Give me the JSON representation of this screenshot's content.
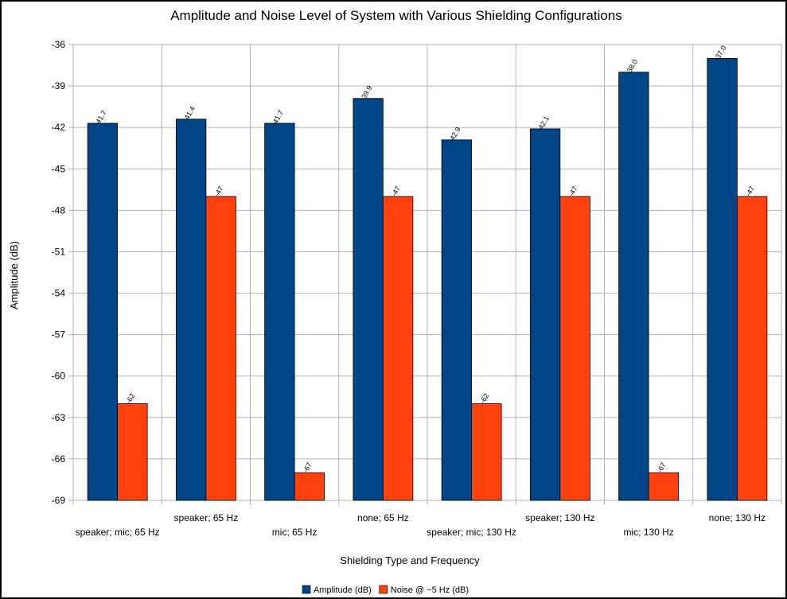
{
  "chart_data": {
    "type": "bar",
    "title": "Amplitude and Noise Level of System with Various Shielding Configurations",
    "xlabel": "Shielding Type and Frequency",
    "ylabel": "Amplitude (dB)",
    "categories": [
      "speaker; mic; 65 Hz",
      "speaker; 65 Hz",
      "mic; 65 Hz",
      "none; 65 Hz",
      "speaker; mic; 130 Hz",
      "speaker; 130 Hz",
      "mic; 130 Hz",
      "none; 130 Hz"
    ],
    "series": [
      {
        "name": "Amplitude (dB)",
        "color": "#004586",
        "values": [
          -41.7,
          -41.4,
          -41.7,
          -39.9,
          -42.9,
          -42.1,
          -38.0,
          -37.0
        ],
        "labels": [
          "-41.7",
          "-41.4",
          "-41.7",
          "-39.9",
          "-42.9",
          "-42.1",
          "-38.0",
          "-37.0"
        ]
      },
      {
        "name": "Noise @ ~5 Hz (dB)",
        "color": "#ff420e",
        "values": [
          -62,
          -47,
          -67,
          -47,
          -62,
          -47,
          -67,
          -47
        ],
        "labels": [
          "-62",
          "-47",
          "-67",
          "-47",
          "-62",
          "-47",
          "-67",
          "-47"
        ]
      }
    ],
    "ylim": [
      -69,
      -36
    ],
    "yticks": [
      "-36",
      "-39",
      "-42",
      "-45",
      "-48",
      "-51",
      "-54",
      "-57",
      "-60",
      "-63",
      "-66",
      "-69"
    ],
    "grid": true,
    "legend": "bottom"
  }
}
